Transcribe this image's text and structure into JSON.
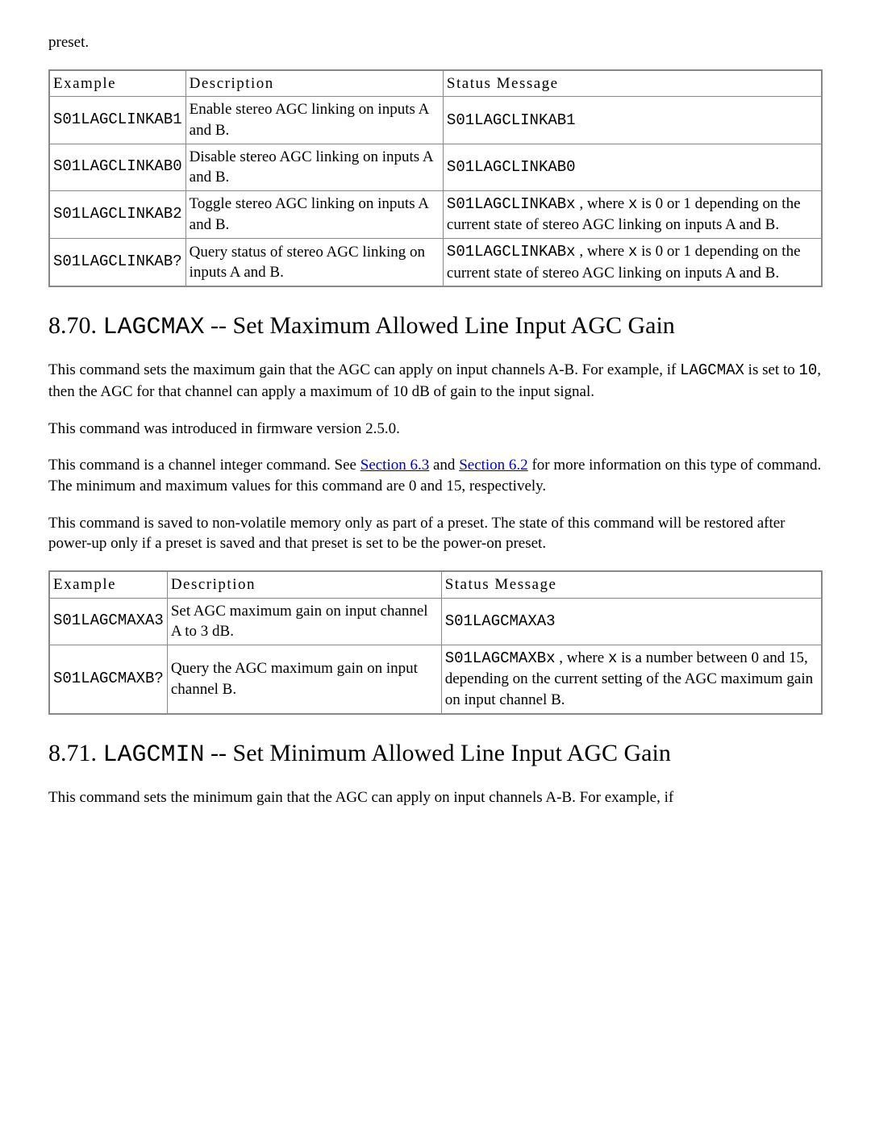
{
  "intro_fragment": "preset.",
  "table_headers": {
    "example": "Example",
    "description": "Description",
    "status": "Status Message"
  },
  "table1": {
    "rows": [
      {
        "example": "S01LAGCLINKAB1",
        "desc": "Enable stereo AGC linking on inputs A and B.",
        "status_code": "S01LAGCLINKAB1",
        "status_text": ""
      },
      {
        "example": "S01LAGCLINKAB0",
        "desc": "Disable stereo AGC linking on inputs A and B.",
        "status_code": "S01LAGCLINKAB0",
        "status_text": ""
      },
      {
        "example": "S01LAGCLINKAB2",
        "desc": "Toggle stereo AGC linking on inputs A and B.",
        "status_code": "S01LAGCLINKABx",
        "status_mid": " , where ",
        "status_var": "x",
        "status_text": " is 0 or 1 depending on the current state of stereo AGC linking on inputs A and B."
      },
      {
        "example": "S01LAGCLINKAB?",
        "desc": "Query status of stereo AGC linking on inputs A and B.",
        "status_code": "S01LAGCLINKABx",
        "status_mid": " , where ",
        "status_var": "x",
        "status_text": " is 0 or 1 depending on the current state of stereo AGC linking on inputs A and B."
      }
    ]
  },
  "section870": {
    "number": "8.70. ",
    "code": "LAGCMAX",
    "title_rest": " -- Set Maximum Allowed Line Input AGC Gain",
    "para1_a": "This command sets the maximum gain that the AGC can apply on input channels A-B. For example, if ",
    "para1_code1": "LAGCMAX",
    "para1_b": " is set to ",
    "para1_code2": "10",
    "para1_c": ", then the AGC for that channel can apply a maximum of 10 dB of gain to the input signal.",
    "para2": "This command was introduced in firmware version 2.5.0.",
    "para3_a": "This command is a channel integer command. See ",
    "link1": "Section 6.3",
    "para3_b": " and ",
    "link2": "Section 6.2",
    "para3_c": " for more information on this type of command. The minimum and maximum values for this command are 0 and 15, respectively.",
    "para4": "This command is saved to non-volatile memory only as part of a preset. The state of this command will be restored after power-up only if a preset is saved and that preset is set to be the power-on preset."
  },
  "table2": {
    "rows": [
      {
        "example": "S01LAGCMAXA3",
        "desc": "Set AGC maximum gain on input channel A to 3 dB.",
        "status_code": "S01LAGCMAXA3",
        "status_text": ""
      },
      {
        "example": "S01LAGCMAXB?",
        "desc": "Query the AGC maximum gain on input channel B.",
        "status_code": "S01LAGCMAXBx",
        "status_mid": " , where ",
        "status_var": "x",
        "status_text": " is a number between 0 and 15, depending on the current setting of the AGC maximum gain on input channel B."
      }
    ]
  },
  "section871": {
    "number": "8.71. ",
    "code": "LAGCMIN",
    "title_rest": " -- Set Minimum Allowed Line Input AGC Gain",
    "para1": "This command sets the minimum gain that the AGC can apply on input channels A-B. For example, if"
  },
  "link_color": "#0000cc"
}
